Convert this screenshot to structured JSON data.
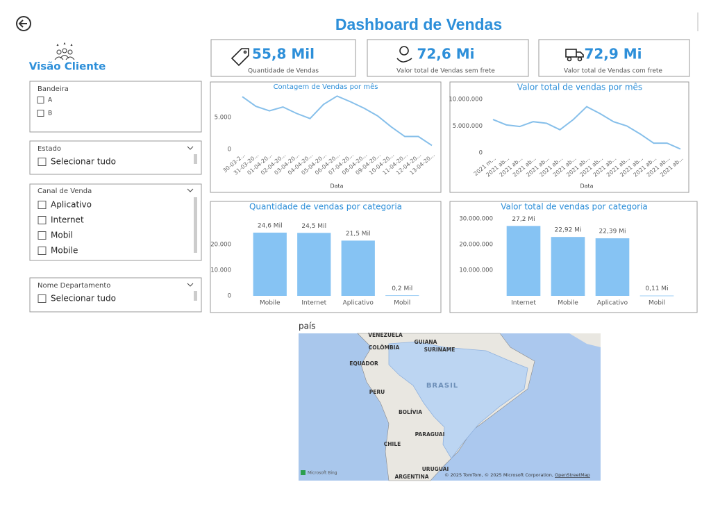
{
  "header": {
    "title": "Dashboard de Vendas",
    "subtitle": "Visão Cliente"
  },
  "kpis": [
    {
      "value": "55,8 Mil",
      "label": "Quantidade de Vendas"
    },
    {
      "value": "72,6 Mi",
      "label": "Valor total de Vendas sem frete"
    },
    {
      "value": "72,9 Mi",
      "label": "Valor total de Vendas com frete"
    }
  ],
  "slicers": [
    {
      "title": "Bandeira",
      "options": [
        "A",
        "B"
      ]
    },
    {
      "title": "Estado",
      "options": [
        "Selecionar tudo"
      ]
    },
    {
      "title": "Canal de Venda",
      "options": [
        "Aplicativo",
        "Internet",
        "Mobil",
        "Mobile"
      ]
    },
    {
      "title": "Nome Departamento",
      "options": [
        "Selecionar tudo"
      ]
    }
  ],
  "chart_data": [
    {
      "type": "line",
      "title": "Contagem de Vendas por mês",
      "x_label": "Data",
      "color": "#86bfea",
      "categories": [
        "30-03-2...",
        "31-03-20...",
        "01-04-20...",
        "02-04-20...",
        "03-04-20...",
        "04-04-20...",
        "05-04-20...",
        "06-04-20...",
        "07-04-20...",
        "08-04-20...",
        "09-04-20...",
        "10-04-20...",
        "11-04-20...",
        "12-04-20...",
        "13-04-20..."
      ],
      "values": [
        8200,
        6700,
        6000,
        6600,
        5600,
        4800,
        7000,
        8300,
        7400,
        6400,
        5200,
        3500,
        2000,
        2000,
        600
      ],
      "ylim": [
        0,
        9200
      ],
      "yticks": [
        0,
        {
          "value": 5000,
          "label": "5.000"
        }
      ]
    },
    {
      "type": "line",
      "title": "Valor total de vendas por mês",
      "x_label": "Data",
      "color": "#86bfea",
      "categories": [
        "2021 m...",
        "2021 ab...",
        "2021 ab...",
        "2021 ab...",
        "2021 ab...",
        "2021 ab...",
        "2021 ab...",
        "2021 ab...",
        "2021 ab...",
        "2021 ab...",
        "2021 ab...",
        "2021 ab...",
        "2021 ab...",
        "2021 ab...",
        "2021 ab..."
      ],
      "values": [
        6200000,
        5200000,
        4900000,
        5800000,
        5500000,
        4300000,
        6200000,
        8600000,
        7300000,
        5800000,
        5000000,
        3500000,
        1800000,
        1800000,
        700000
      ],
      "ylim": [
        0,
        12300000
      ],
      "yticks": [
        0,
        {
          "value": 5000000,
          "label": "5.000.000"
        },
        {
          "value": 10000000,
          "label": "10.000.000"
        }
      ]
    },
    {
      "type": "bar",
      "title": "Quantidade de vendas por categoria",
      "color": "#86c3f3",
      "categories": [
        "Mobile",
        "Internet",
        "Aplicativo",
        "Mobil"
      ],
      "values": [
        24600,
        24500,
        21500,
        200
      ],
      "value_labels": [
        "24,6 Mil",
        "24,5 Mil",
        "21,5 Mil",
        "0,2 Mil"
      ],
      "ylim": [
        0,
        30800
      ],
      "yticks": [
        0,
        {
          "value": 10000,
          "label": "10.000"
        },
        {
          "value": 20000,
          "label": "20.000"
        }
      ]
    },
    {
      "type": "bar",
      "title": "Valor total de vendas por categoria",
      "color": "#86c3f3",
      "categories": [
        "Internet",
        "Mobile",
        "Aplicativo",
        "Mobil"
      ],
      "values": [
        27200000,
        22920000,
        22390000,
        110000
      ],
      "value_labels": [
        "27,2 Mi",
        "22,92 Mi",
        "22,39 Mi",
        "0,11 Mi"
      ],
      "ylim": [
        0,
        30800000
      ],
      "yticks": [
        {
          "value": 10000000,
          "label": "10.000.000"
        },
        {
          "value": 20000000,
          "label": "20.000.000"
        },
        {
          "value": 30000000,
          "label": "30.000.000"
        }
      ]
    }
  ],
  "map": {
    "title": "país",
    "labels": [
      "VENEZUELA",
      "GUIANA",
      "SURINAME",
      "COLÔMBIA",
      "EQUADOR",
      "BRASIL",
      "PERU",
      "BOLÍVIA",
      "PARAGUAI",
      "CHILE",
      "URUGUAI",
      "ARGENTINA"
    ],
    "logo": "Microsoft Bing",
    "attribution": "© 2025 TomTom, © 2025 Microsoft Corporation, ",
    "link": "OpenStreetMap"
  }
}
